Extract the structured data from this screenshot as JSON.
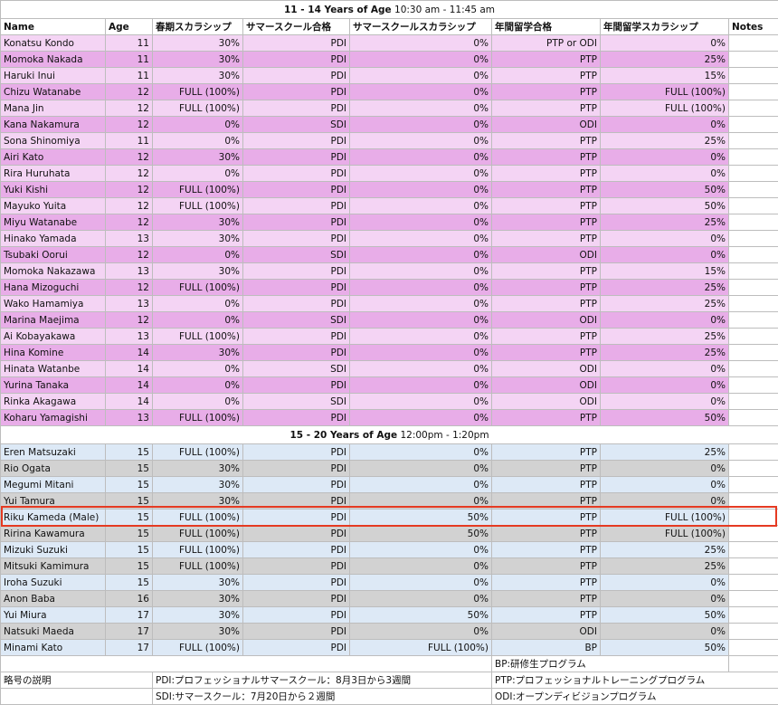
{
  "header": [
    "Name",
    "Age",
    "春期スカラシップ",
    "サマースクール合格",
    "サマースクールスカラシップ",
    "年間留学合格",
    "年間留学スカラシップ",
    "Notes"
  ],
  "sections": [
    {
      "title": "11 - 14 Years of Age",
      "time": "10:30 am - 11:45 am",
      "rows": [
        [
          "Konatsu Kondo",
          "11",
          "30%",
          "PDI",
          "0%",
          "PTP or ODI",
          "0%"
        ],
        [
          "Momoka Nakada",
          "11",
          "30%",
          "PDI",
          "0%",
          "PTP",
          "25%"
        ],
        [
          "Haruki Inui",
          "11",
          "30%",
          "PDI",
          "0%",
          "PTP",
          "15%"
        ],
        [
          "Chizu Watanabe",
          "12",
          "FULL (100%)",
          "PDI",
          "0%",
          "PTP",
          "FULL (100%)"
        ],
        [
          "Mana Jin",
          "12",
          "FULL (100%)",
          "PDI",
          "0%",
          "PTP",
          "FULL (100%)"
        ],
        [
          "Kana Nakamura",
          "12",
          "0%",
          "SDI",
          "0%",
          "ODI",
          "0%"
        ],
        [
          "Sona Shinomiya",
          "11",
          "0%",
          "PDI",
          "0%",
          "PTP",
          "25%"
        ],
        [
          "Airi Kato",
          "12",
          "30%",
          "PDI",
          "0%",
          "PTP",
          "0%"
        ],
        [
          "Rira Huruhata",
          "12",
          "0%",
          "PDI",
          "0%",
          "PTP",
          "0%"
        ],
        [
          "Yuki Kishi",
          "12",
          "FULL (100%)",
          "PDI",
          "0%",
          "PTP",
          "50%"
        ],
        [
          "Mayuko Yuita",
          "12",
          "FULL (100%)",
          "PDI",
          "0%",
          "PTP",
          "50%"
        ],
        [
          "Miyu Watanabe",
          "12",
          "30%",
          "PDI",
          "0%",
          "PTP",
          "25%"
        ],
        [
          "Hinako Yamada",
          "13",
          "30%",
          "PDI",
          "0%",
          "PTP",
          "0%"
        ],
        [
          "Tsubaki Oorui",
          "12",
          "0%",
          "SDI",
          "0%",
          "ODI",
          "0%"
        ],
        [
          "Momoka Nakazawa",
          "13",
          "30%",
          "PDI",
          "0%",
          "PTP",
          "15%"
        ],
        [
          "Hana Mizoguchi",
          "12",
          "FULL (100%)",
          "PDI",
          "0%",
          "PTP",
          "25%"
        ],
        [
          "Wako Hamamiya",
          "13",
          "0%",
          "PDI",
          "0%",
          "PTP",
          "25%"
        ],
        [
          "Marina Maejima",
          "12",
          "0%",
          "SDI",
          "0%",
          "ODI",
          "0%"
        ],
        [
          "Ai Kobayakawa",
          "13",
          "FULL (100%)",
          "PDI",
          "0%",
          "PTP",
          "25%"
        ],
        [
          "Hina Komine",
          "14",
          "30%",
          "PDI",
          "0%",
          "PTP",
          "25%"
        ],
        [
          "Hinata Watanbe",
          "14",
          "0%",
          "SDI",
          "0%",
          "ODI",
          "0%"
        ],
        [
          "Yurina Tanaka",
          "14",
          "0%",
          "PDI",
          "0%",
          "ODI",
          "0%"
        ],
        [
          "Rinka Akagawa",
          "14",
          "0%",
          "SDI",
          "0%",
          "ODI",
          "0%"
        ],
        [
          "Koharu Yamagishi",
          "13",
          "FULL (100%)",
          "PDI",
          "0%",
          "PTP",
          "50%"
        ]
      ]
    },
    {
      "title": "15 - 20 Years of Age",
      "time": "12:00pm - 1:20pm",
      "rows": [
        [
          "Eren Matsuzaki",
          "15",
          "FULL (100%)",
          "PDI",
          "0%",
          "PTP",
          "25%"
        ],
        [
          "Rio Ogata",
          "15",
          "30%",
          "PDI",
          "0%",
          "PTP",
          "0%"
        ],
        [
          "Megumi Mitani",
          "15",
          "30%",
          "PDI",
          "0%",
          "PTP",
          "0%"
        ],
        [
          "Yui Tamura",
          "15",
          "30%",
          "PDI",
          "0%",
          "PTP",
          "0%"
        ],
        [
          "Riku Kameda (Male)",
          "15",
          "FULL (100%)",
          "PDI",
          "50%",
          "PTP",
          "FULL (100%)"
        ],
        [
          "Ririna Kawamura",
          "15",
          "FULL (100%)",
          "PDI",
          "50%",
          "PTP",
          "FULL (100%)"
        ],
        [
          "Mizuki Suzuki",
          "15",
          "FULL (100%)",
          "PDI",
          "0%",
          "PTP",
          "25%"
        ],
        [
          "Mitsuki Kamimura",
          "15",
          "FULL (100%)",
          "PDI",
          "0%",
          "PTP",
          "25%"
        ],
        [
          "Iroha Suzuki",
          "15",
          "30%",
          "PDI",
          "0%",
          "PTP",
          "0%"
        ],
        [
          "Anon Baba",
          "16",
          "30%",
          "PDI",
          "0%",
          "PTP",
          "0%"
        ],
        [
          "Yui Miura",
          "17",
          "30%",
          "PDI",
          "50%",
          "PTP",
          "50%"
        ],
        [
          "Natsuki Maeda",
          "17",
          "30%",
          "PDI",
          "0%",
          "ODI",
          "0%"
        ],
        [
          "Minami Kato",
          "17",
          "FULL (100%)",
          "PDI",
          "FULL (100%)",
          "BP",
          "50%"
        ]
      ]
    }
  ],
  "legend": {
    "bp": "BP:研修生プログラム",
    "label": "略号の説明",
    "pdi": "PDI:プロフェッショナルサマースクール：8月3日から3週間",
    "ptp": "PTP:プロフェッショナルトレーニングプログラム",
    "sdi": "SDI:サマースクール：7月20日から２週間",
    "odi": "ODI:オープンディビジョンプログラム"
  }
}
